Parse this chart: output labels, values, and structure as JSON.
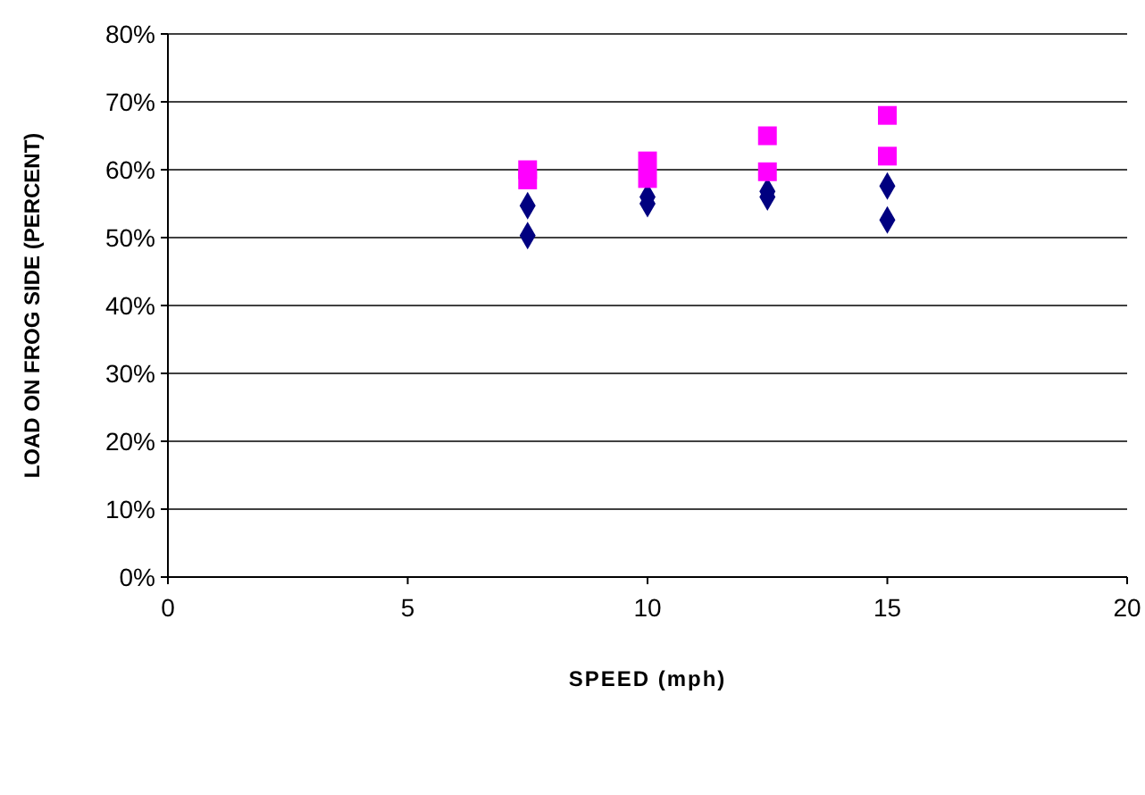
{
  "chart_data": {
    "type": "scatter",
    "xlabel": "SPEED (mph)",
    "ylabel": "LOAD ON FROG SIDE (PERCENT)",
    "xlim": [
      0,
      20
    ],
    "xticks": [
      0,
      5,
      10,
      15,
      20
    ],
    "ylim": [
      0,
      80
    ],
    "yticks": [
      {
        "value": 0,
        "label": "0%"
      },
      {
        "value": 10,
        "label": "10%"
      },
      {
        "value": 20,
        "label": "20%"
      },
      {
        "value": 30,
        "label": "30%"
      },
      {
        "value": 40,
        "label": "40%"
      },
      {
        "value": 50,
        "label": "50%"
      },
      {
        "value": 60,
        "label": "60%"
      },
      {
        "value": 70,
        "label": "70%"
      },
      {
        "value": 80,
        "label": "80%"
      }
    ],
    "grid": "y",
    "x": [
      7.5,
      7.5,
      10,
      10,
      12.5,
      12.5,
      15,
      15
    ],
    "series": [
      {
        "color": "#000080",
        "marker": "diamond",
        "values": [
          54.7,
          50.3,
          56,
          55,
          56.8,
          56,
          57.6,
          52.6
        ]
      },
      {
        "color": "#ff00ff",
        "marker": "square",
        "values": [
          60,
          58.5,
          61.3,
          58.7,
          65,
          59.7,
          68,
          62
        ]
      }
    ]
  }
}
